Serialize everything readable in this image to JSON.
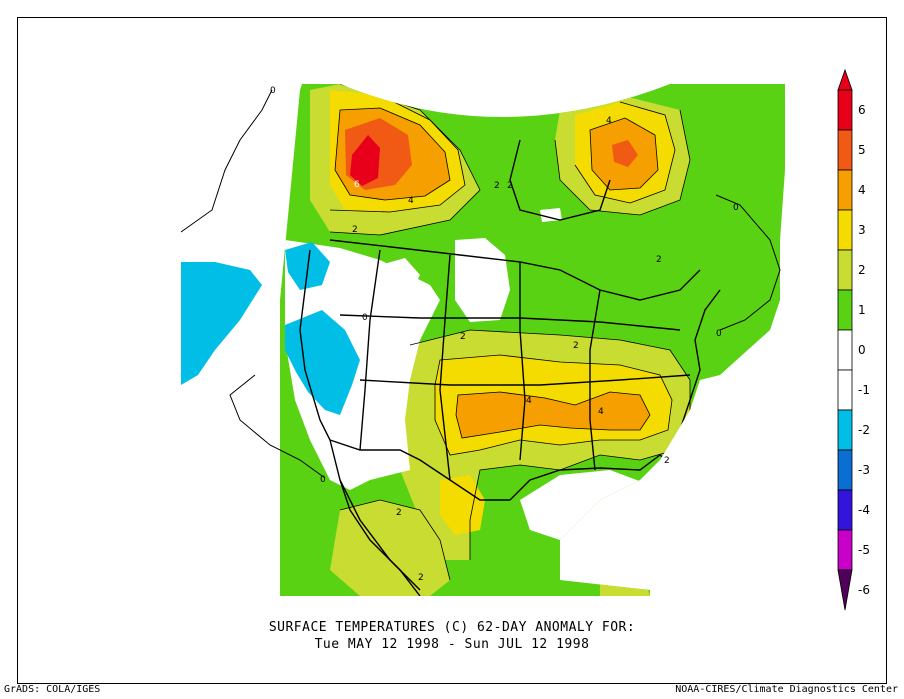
{
  "title_line1": "SURFACE TEMPERATURES (C)   62-DAY ANOMALY FOR:",
  "title_line2": "Tue MAY 12 1998 - Sun JUL 12 1998",
  "footer_left": "GrADS: COLA/IGES",
  "footer_right": "NOAA-CIRES/Climate Diagnostics Center",
  "colorbar": {
    "levels": [
      {
        "label": "6",
        "color": "#e8001a"
      },
      {
        "label": "5",
        "color": "#f05a14"
      },
      {
        "label": "4",
        "color": "#f5a000"
      },
      {
        "label": "3",
        "color": "#f5dc00"
      },
      {
        "label": "2",
        "color": "#c8dc32"
      },
      {
        "label": "1",
        "color": "#5ad214"
      },
      {
        "label": "0",
        "color": "#ffffff"
      },
      {
        "label": "-1",
        "color": "#ffffff"
      },
      {
        "label": "-2",
        "color": "#00bee6"
      },
      {
        "label": "-3",
        "color": "#0a6ed2"
      },
      {
        "label": "-4",
        "color": "#3214dc"
      },
      {
        "label": "-5",
        "color": "#c800c8"
      },
      {
        "label": "-6",
        "color": "#96008c"
      }
    ],
    "bottom_cap_color": "#50005a"
  },
  "contour_labels": [
    "0",
    "6",
    "4",
    "2",
    "4",
    "2",
    "2",
    "0",
    "2",
    "2",
    "0",
    "2",
    "4",
    "4",
    "2",
    "0",
    "2",
    "2",
    "0"
  ]
}
